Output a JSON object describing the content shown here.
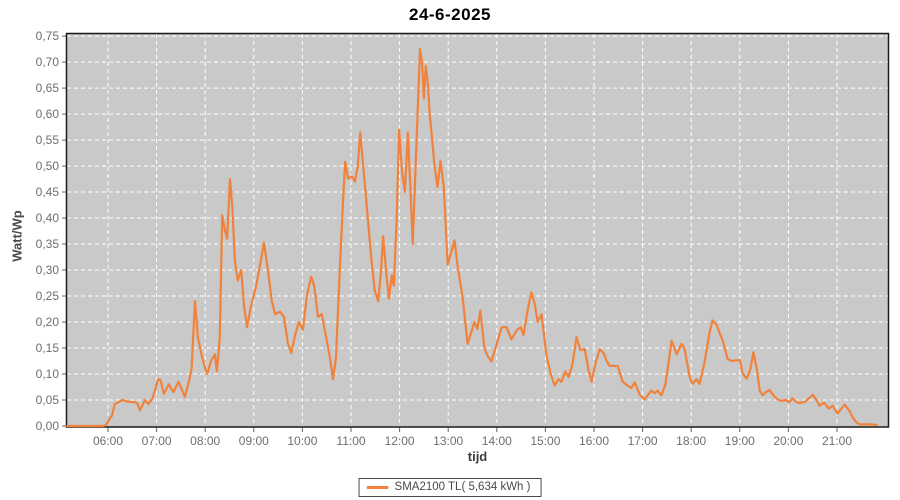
{
  "chart_data": {
    "type": "line",
    "title": "24-6-2025",
    "xlabel": "tijd",
    "ylabel": "Watt/Wp",
    "legend": {
      "label": "SMA2100 TL( 5,634 kWh )",
      "position": "bottom-center"
    },
    "grid": "white dashed, on",
    "x_domain_hours": [
      5.156,
      22.05
    ],
    "y_domain": [
      0,
      0.754
    ],
    "x_tick_hours": [
      6,
      7,
      8,
      9,
      10,
      11,
      12,
      13,
      14,
      15,
      16,
      17,
      18,
      19,
      20,
      21
    ],
    "x_tick_labels": [
      "06:00",
      "07:00",
      "08:00",
      "09:00",
      "10:00",
      "11:00",
      "12:00",
      "13:00",
      "14:00",
      "15:00",
      "16:00",
      "17:00",
      "18:00",
      "19:00",
      "20:00",
      "21:00"
    ],
    "y_tick_values": [
      0,
      0.05,
      0.1,
      0.15,
      0.2,
      0.25,
      0.3,
      0.35,
      0.4,
      0.45,
      0.5,
      0.55,
      0.6,
      0.65,
      0.7,
      0.75
    ],
    "y_tick_labels": [
      "0,00",
      "0,05",
      "0,10",
      "0,15",
      "0,20",
      "0,25",
      "0,30",
      "0,35",
      "0,40",
      "0,45",
      "0,50",
      "0,55",
      "0,60",
      "0,65",
      "0,70",
      "0,75"
    ],
    "colors": {
      "line": "#F0823C",
      "plot_bg": "#c9c9c9",
      "grid": "#ffffff",
      "plot_border": "#1a1a1a",
      "tick": "#666666",
      "tick_text": "#6e6e6e",
      "title_text": "#000000",
      "axis_label_text": "#4a4a4a",
      "legend_border": "#4a4a4a",
      "legend_bg": "#ffffff"
    },
    "series": [
      {
        "name": "SMA2100 TL( 5,634 kWh )",
        "color": "#F0823C",
        "points_hour_value": [
          [
            5.16,
            0
          ],
          [
            5.4,
            0
          ],
          [
            5.7,
            0
          ],
          [
            5.9,
            0
          ],
          [
            5.96,
            0.002
          ],
          [
            6.02,
            0.012
          ],
          [
            6.08,
            0.02
          ],
          [
            6.14,
            0.042
          ],
          [
            6.21,
            0.046
          ],
          [
            6.3,
            0.05
          ],
          [
            6.4,
            0.047
          ],
          [
            6.52,
            0.046
          ],
          [
            6.6,
            0.044
          ],
          [
            6.66,
            0.03
          ],
          [
            6.76,
            0.05
          ],
          [
            6.83,
            0.042
          ],
          [
            6.91,
            0.052
          ],
          [
            6.97,
            0.07
          ],
          [
            7.03,
            0.09
          ],
          [
            7.08,
            0.088
          ],
          [
            7.15,
            0.062
          ],
          [
            7.25,
            0.08
          ],
          [
            7.35,
            0.065
          ],
          [
            7.45,
            0.085
          ],
          [
            7.52,
            0.07
          ],
          [
            7.58,
            0.056
          ],
          [
            7.65,
            0.08
          ],
          [
            7.72,
            0.11
          ],
          [
            7.79,
            0.24
          ],
          [
            7.85,
            0.17
          ],
          [
            7.93,
            0.135
          ],
          [
            8.0,
            0.11
          ],
          [
            8.04,
            0.1
          ],
          [
            8.12,
            0.125
          ],
          [
            8.2,
            0.138
          ],
          [
            8.24,
            0.105
          ],
          [
            8.3,
            0.17
          ],
          [
            8.35,
            0.405
          ],
          [
            8.4,
            0.38
          ],
          [
            8.45,
            0.36
          ],
          [
            8.51,
            0.475
          ],
          [
            8.56,
            0.42
          ],
          [
            8.61,
            0.317
          ],
          [
            8.67,
            0.28
          ],
          [
            8.74,
            0.3
          ],
          [
            8.8,
            0.23
          ],
          [
            8.86,
            0.19
          ],
          [
            8.94,
            0.23
          ],
          [
            9.05,
            0.27
          ],
          [
            9.13,
            0.31
          ],
          [
            9.21,
            0.353
          ],
          [
            9.29,
            0.3
          ],
          [
            9.37,
            0.24
          ],
          [
            9.44,
            0.215
          ],
          [
            9.54,
            0.22
          ],
          [
            9.62,
            0.21
          ],
          [
            9.7,
            0.16
          ],
          [
            9.77,
            0.14
          ],
          [
            9.85,
            0.175
          ],
          [
            9.93,
            0.2
          ],
          [
            10.01,
            0.185
          ],
          [
            10.09,
            0.25
          ],
          [
            10.18,
            0.287
          ],
          [
            10.24,
            0.27
          ],
          [
            10.32,
            0.21
          ],
          [
            10.4,
            0.215
          ],
          [
            10.49,
            0.17
          ],
          [
            10.57,
            0.13
          ],
          [
            10.63,
            0.09
          ],
          [
            10.69,
            0.13
          ],
          [
            10.77,
            0.3
          ],
          [
            10.84,
            0.44
          ],
          [
            10.88,
            0.508
          ],
          [
            10.94,
            0.476
          ],
          [
            11.02,
            0.48
          ],
          [
            11.08,
            0.47
          ],
          [
            11.14,
            0.5
          ],
          [
            11.19,
            0.565
          ],
          [
            11.25,
            0.5
          ],
          [
            11.29,
            0.46
          ],
          [
            11.35,
            0.395
          ],
          [
            11.43,
            0.31
          ],
          [
            11.49,
            0.26
          ],
          [
            11.56,
            0.24
          ],
          [
            11.62,
            0.3
          ],
          [
            11.66,
            0.365
          ],
          [
            11.72,
            0.3
          ],
          [
            11.78,
            0.245
          ],
          [
            11.84,
            0.29
          ],
          [
            11.88,
            0.27
          ],
          [
            11.94,
            0.4
          ],
          [
            11.99,
            0.57
          ],
          [
            12.05,
            0.49
          ],
          [
            12.11,
            0.45
          ],
          [
            12.17,
            0.565
          ],
          [
            12.23,
            0.44
          ],
          [
            12.27,
            0.35
          ],
          [
            12.33,
            0.5
          ],
          [
            12.37,
            0.6
          ],
          [
            12.42,
            0.725
          ],
          [
            12.46,
            0.7
          ],
          [
            12.5,
            0.63
          ],
          [
            12.54,
            0.693
          ],
          [
            12.58,
            0.66
          ],
          [
            12.62,
            0.6
          ],
          [
            12.66,
            0.56
          ],
          [
            12.72,
            0.5
          ],
          [
            12.78,
            0.46
          ],
          [
            12.84,
            0.51
          ],
          [
            12.91,
            0.46
          ],
          [
            12.99,
            0.31
          ],
          [
            13.05,
            0.33
          ],
          [
            13.13,
            0.357
          ],
          [
            13.19,
            0.31
          ],
          [
            13.3,
            0.245
          ],
          [
            13.4,
            0.158
          ],
          [
            13.54,
            0.2
          ],
          [
            13.6,
            0.187
          ],
          [
            13.66,
            0.222
          ],
          [
            13.75,
            0.148
          ],
          [
            13.81,
            0.135
          ],
          [
            13.89,
            0.124
          ],
          [
            13.99,
            0.155
          ],
          [
            14.1,
            0.19
          ],
          [
            14.2,
            0.19
          ],
          [
            14.3,
            0.167
          ],
          [
            14.42,
            0.185
          ],
          [
            14.49,
            0.19
          ],
          [
            14.55,
            0.175
          ],
          [
            14.63,
            0.22
          ],
          [
            14.71,
            0.257
          ],
          [
            14.78,
            0.235
          ],
          [
            14.84,
            0.2
          ],
          [
            14.92,
            0.215
          ],
          [
            15.02,
            0.137
          ],
          [
            15.11,
            0.1
          ],
          [
            15.19,
            0.078
          ],
          [
            15.27,
            0.09
          ],
          [
            15.33,
            0.085
          ],
          [
            15.41,
            0.105
          ],
          [
            15.48,
            0.094
          ],
          [
            15.56,
            0.12
          ],
          [
            15.64,
            0.171
          ],
          [
            15.72,
            0.146
          ],
          [
            15.81,
            0.148
          ],
          [
            15.89,
            0.107
          ],
          [
            15.95,
            0.085
          ],
          [
            16.03,
            0.12
          ],
          [
            16.12,
            0.148
          ],
          [
            16.2,
            0.14
          ],
          [
            16.26,
            0.125
          ],
          [
            16.32,
            0.116
          ],
          [
            16.49,
            0.115
          ],
          [
            16.59,
            0.085
          ],
          [
            16.69,
            0.078
          ],
          [
            16.77,
            0.073
          ],
          [
            16.84,
            0.084
          ],
          [
            16.94,
            0.06
          ],
          [
            17.04,
            0.051
          ],
          [
            17.18,
            0.068
          ],
          [
            17.25,
            0.063
          ],
          [
            17.31,
            0.068
          ],
          [
            17.39,
            0.059
          ],
          [
            17.47,
            0.08
          ],
          [
            17.6,
            0.164
          ],
          [
            17.7,
            0.138
          ],
          [
            17.8,
            0.158
          ],
          [
            17.86,
            0.15
          ],
          [
            17.97,
            0.094
          ],
          [
            18.03,
            0.081
          ],
          [
            18.11,
            0.09
          ],
          [
            18.17,
            0.081
          ],
          [
            18.27,
            0.12
          ],
          [
            18.38,
            0.18
          ],
          [
            18.44,
            0.203
          ],
          [
            18.52,
            0.195
          ],
          [
            18.58,
            0.18
          ],
          [
            18.65,
            0.164
          ],
          [
            18.75,
            0.129
          ],
          [
            18.83,
            0.125
          ],
          [
            19.0,
            0.127
          ],
          [
            19.06,
            0.101
          ],
          [
            19.14,
            0.091
          ],
          [
            19.22,
            0.11
          ],
          [
            19.28,
            0.142
          ],
          [
            19.35,
            0.11
          ],
          [
            19.41,
            0.068
          ],
          [
            19.47,
            0.059
          ],
          [
            19.55,
            0.066
          ],
          [
            19.61,
            0.069
          ],
          [
            19.7,
            0.058
          ],
          [
            19.78,
            0.051
          ],
          [
            19.86,
            0.048
          ],
          [
            19.94,
            0.05
          ],
          [
            20.02,
            0.046
          ],
          [
            20.08,
            0.053
          ],
          [
            20.17,
            0.046
          ],
          [
            20.23,
            0.044
          ],
          [
            20.35,
            0.047
          ],
          [
            20.5,
            0.06
          ],
          [
            20.58,
            0.05
          ],
          [
            20.64,
            0.039
          ],
          [
            20.74,
            0.045
          ],
          [
            20.83,
            0.033
          ],
          [
            20.91,
            0.039
          ],
          [
            21.01,
            0.024
          ],
          [
            21.16,
            0.041
          ],
          [
            21.26,
            0.029
          ],
          [
            21.32,
            0.017
          ],
          [
            21.4,
            0.007
          ],
          [
            21.47,
            0.003
          ],
          [
            21.6,
            0.003
          ],
          [
            21.7,
            0.003
          ],
          [
            21.82,
            0.002
          ]
        ]
      }
    ]
  }
}
